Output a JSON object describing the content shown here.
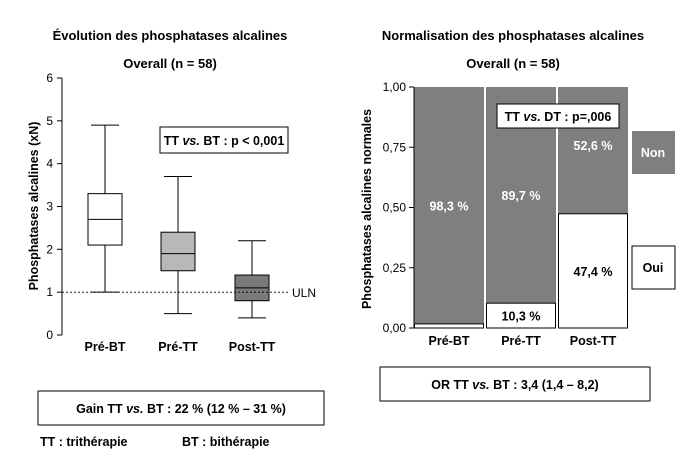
{
  "chart_data": [
    {
      "type": "box",
      "title": "Évolution des phosphatases alcalines",
      "subtitle": "Overall (n = 58)",
      "ylabel": "Phosphatases alcalines (xN)",
      "ylim": [
        0,
        6
      ],
      "yticks": [
        "0",
        "1",
        "2",
        "3",
        "4",
        "5",
        "6"
      ],
      "categories": [
        "Pré-BT",
        "Pré-TT",
        "Post-TT"
      ],
      "boxes": [
        {
          "min": 1.0,
          "q1": 2.1,
          "median": 2.7,
          "q3": 3.3,
          "max": 4.9,
          "color": "#ffffff"
        },
        {
          "min": 0.5,
          "q1": 1.5,
          "median": 1.9,
          "q3": 2.4,
          "max": 3.7,
          "color": "#b8b8b8"
        },
        {
          "min": 0.4,
          "q1": 0.8,
          "median": 1.1,
          "q3": 1.4,
          "max": 2.2,
          "color": "#7a7a7a"
        }
      ],
      "reference_line": {
        "value": 1,
        "label": "ULN"
      },
      "annotation": {
        "pre": "TT ",
        "em": "vs.",
        "post": " BT : p < 0,001"
      }
    },
    {
      "type": "bar",
      "stacked": true,
      "title": "Normalisation des phosphatases alcalines",
      "subtitle": "Overall (n = 58)",
      "ylabel": "Phosphatases alcalines normales",
      "ylim": [
        0,
        1
      ],
      "yticks": [
        "0,00",
        "0,25",
        "0,50",
        "0,75",
        "1,00"
      ],
      "categories": [
        "Pré-BT",
        "Pré-TT",
        "Post-TT"
      ],
      "series": [
        {
          "name": "Oui",
          "values": [
            0.017,
            0.103,
            0.474
          ],
          "labels": [
            "",
            "10,3 %",
            "47,4 %"
          ],
          "color": "#ffffff"
        },
        {
          "name": "Non",
          "values": [
            0.983,
            0.897,
            0.526
          ],
          "labels": [
            "98,3 %",
            "89,7 %",
            "52,6 %"
          ],
          "color": "#7f7f7f"
        }
      ],
      "annotation": {
        "pre": "TT ",
        "em": "vs.",
        "post": " DT : p=,006"
      }
    }
  ],
  "footer": {
    "gain": {
      "pre": "Gain TT ",
      "em": "vs.",
      "post": " BT : 22 % (12 % – 31 %)"
    },
    "or": {
      "pre": "OR TT ",
      "em": "vs.",
      "post": " BT : 3,4 (1,4 – 8,2)"
    },
    "abbr_tt": "TT : trithérapie",
    "abbr_bt": "BT : bithérapie"
  }
}
